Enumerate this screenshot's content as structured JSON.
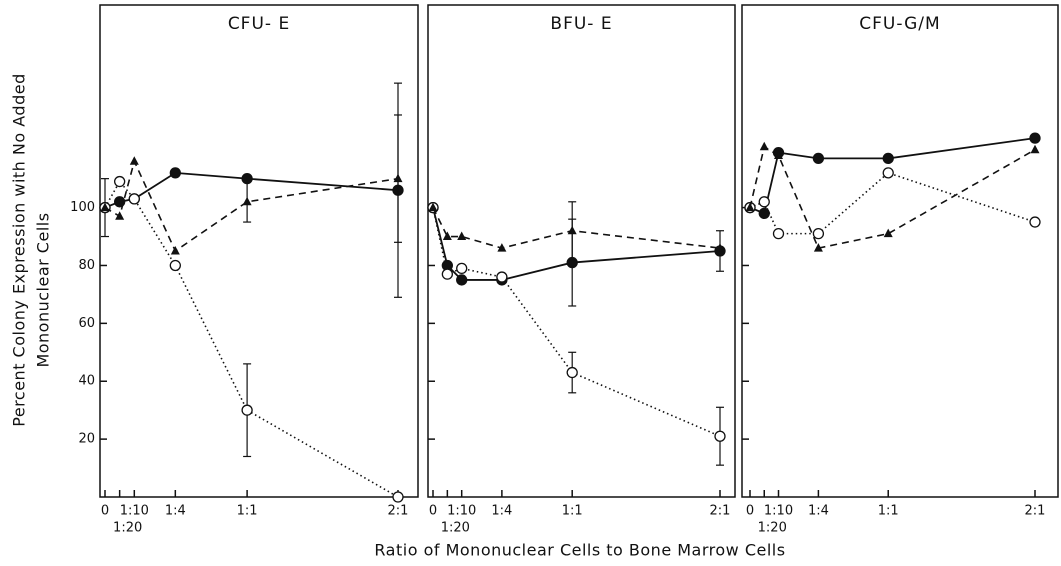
{
  "ylabel": [
    "Percent Colony Expression with No Added",
    "Mononuclear Cells"
  ],
  "xlabel": "Ratio of Mononuclear Cells to Bone Marrow Cells",
  "chart_data": [
    {
      "type": "line",
      "title": "CFU- E",
      "categories": [
        "0",
        "1:20",
        "1:10",
        "1:4",
        "1:1",
        "2:1"
      ],
      "ylim": [
        0,
        170
      ],
      "yticks": [
        20,
        40,
        60,
        80,
        100
      ],
      "series": [
        {
          "color": "#111",
          "marker": "filled-circle",
          "dash": "solid",
          "values": [
            100,
            102,
            103,
            112,
            110,
            106
          ],
          "errors": [
            10,
            null,
            null,
            null,
            null,
            37
          ]
        },
        {
          "color": "#111",
          "marker": "open-circle",
          "dash": "dotted",
          "values": [
            100,
            109,
            103,
            80,
            30,
            0
          ],
          "errors": [
            null,
            null,
            null,
            null,
            16,
            null
          ]
        },
        {
          "color": "#111",
          "marker": "triangle",
          "dash": "dashed",
          "values": [
            100,
            97,
            116,
            85,
            102,
            110
          ],
          "errors": [
            null,
            null,
            null,
            null,
            7,
            22
          ]
        }
      ]
    },
    {
      "type": "line",
      "title": "BFU- E",
      "categories": [
        "0",
        "1:20",
        "1:10",
        "1:4",
        "1:1",
        "2:1"
      ],
      "ylim": [
        0,
        170
      ],
      "yticks": [
        20,
        40,
        60,
        80,
        100
      ],
      "series": [
        {
          "color": "#111",
          "marker": "filled-circle",
          "dash": "solid",
          "values": [
            100,
            80,
            75,
            75,
            81,
            85
          ],
          "errors": [
            null,
            null,
            null,
            null,
            15,
            7
          ]
        },
        {
          "color": "#111",
          "marker": "open-circle",
          "dash": "dotted",
          "values": [
            100,
            77,
            79,
            76,
            43,
            21
          ],
          "errors": [
            null,
            null,
            null,
            null,
            7,
            10
          ]
        },
        {
          "color": "#111",
          "marker": "triangle",
          "dash": "dashed",
          "values": [
            100,
            90,
            90,
            86,
            92,
            86
          ],
          "errors": [
            null,
            null,
            null,
            null,
            10,
            null
          ]
        }
      ]
    },
    {
      "type": "line",
      "title": "CFU-G/M",
      "categories": [
        "0",
        "1:20",
        "1:10",
        "1:4",
        "1:1",
        "2:1"
      ],
      "ylim": [
        0,
        170
      ],
      "yticks": [
        20,
        40,
        60,
        80,
        100
      ],
      "series": [
        {
          "color": "#111",
          "marker": "filled-circle",
          "dash": "solid",
          "values": [
            100,
            98,
            119,
            117,
            117,
            124
          ],
          "errors": [
            null,
            null,
            null,
            null,
            null,
            null
          ]
        },
        {
          "color": "#111",
          "marker": "open-circle",
          "dash": "dotted",
          "values": [
            100,
            102,
            91,
            91,
            112,
            95
          ],
          "errors": [
            null,
            null,
            null,
            null,
            null,
            null
          ]
        },
        {
          "color": "#111",
          "marker": "triangle",
          "dash": "dashed",
          "values": [
            100,
            121,
            118,
            86,
            91,
            120
          ],
          "errors": [
            null,
            null,
            null,
            null,
            null,
            null
          ]
        }
      ]
    }
  ]
}
